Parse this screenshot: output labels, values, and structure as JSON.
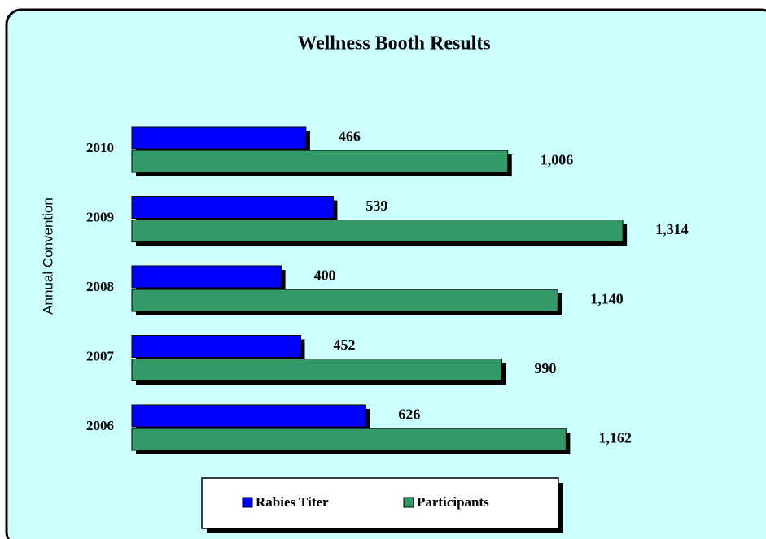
{
  "chart_data": {
    "type": "bar",
    "orientation": "horizontal",
    "title": "Wellness Booth Results",
    "y_label": "Annual Convention",
    "categories": [
      "2010",
      "2009",
      "2008",
      "2007",
      "2006"
    ],
    "series": [
      {
        "name": "Rabies Titer",
        "color": "#0000ff",
        "values": [
          466,
          539,
          400,
          452,
          626
        ]
      },
      {
        "name": "Participants",
        "color": "#339966",
        "values": [
          1006,
          1314,
          1140,
          990,
          1162
        ],
        "value_labels": [
          "1,006",
          "1,314",
          "1,140",
          "990",
          "1,162"
        ]
      }
    ],
    "legend": "bottom"
  }
}
